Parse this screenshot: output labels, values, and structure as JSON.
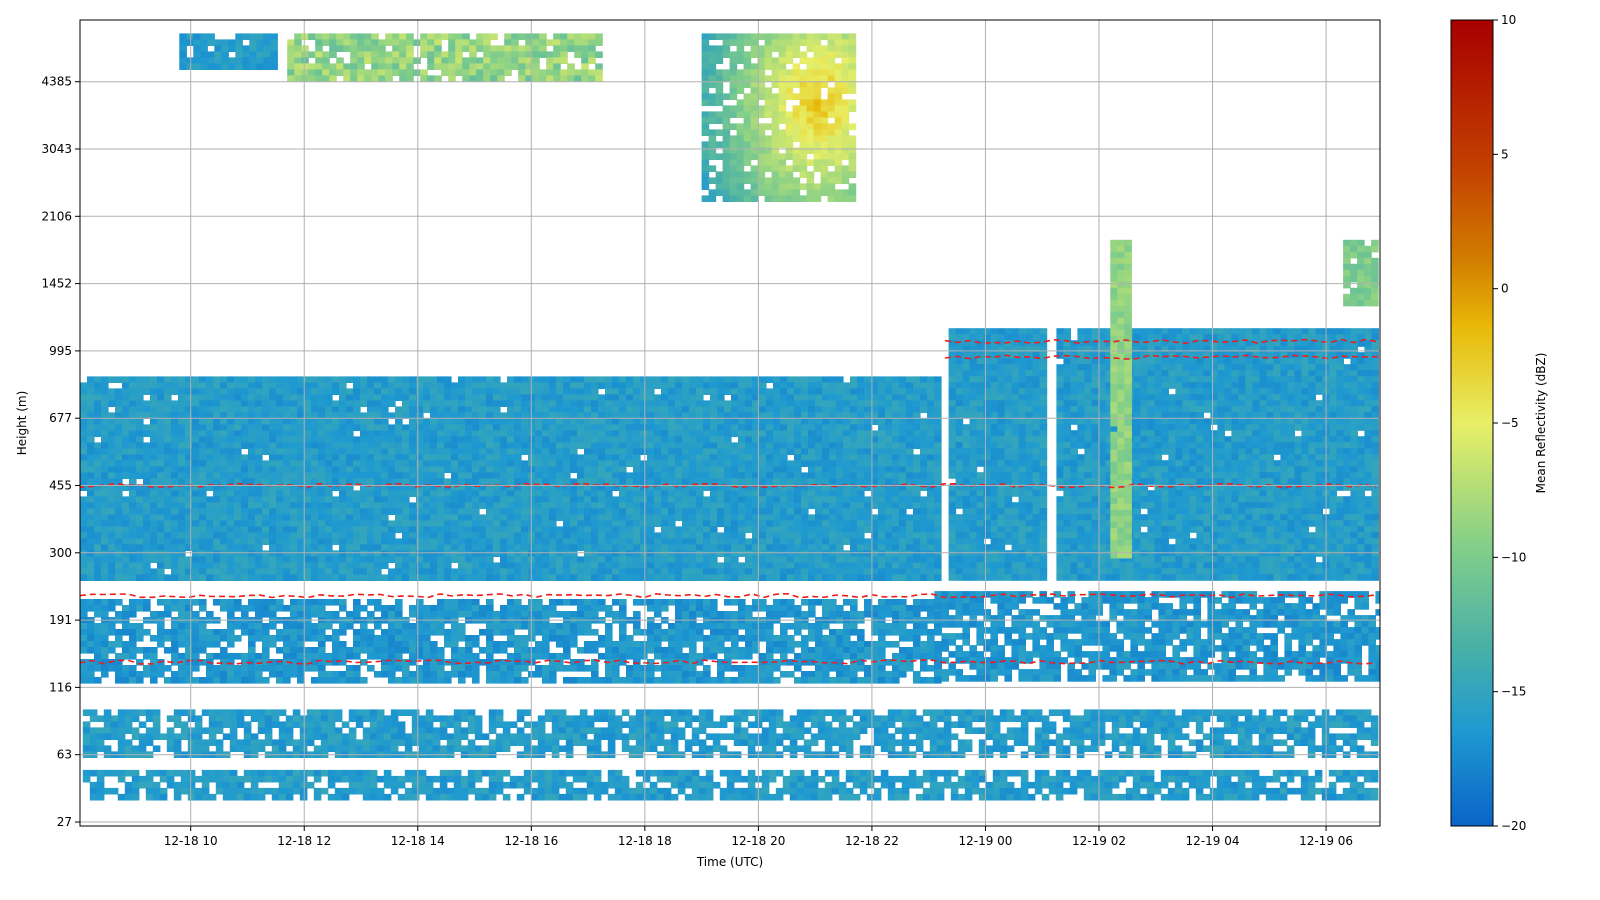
{
  "chart_data": {
    "type": "heatmap",
    "xlabel": "Time (UTC)",
    "ylabel": "Height (m)",
    "x_ticks": [
      "12-18 10",
      "12-18 12",
      "12-18 14",
      "12-18 16",
      "12-18 18",
      "12-18 20",
      "12-18 22",
      "12-19 00",
      "12-19 02",
      "12-19 04",
      "12-19 06"
    ],
    "x_tick_hours": [
      10,
      12,
      14,
      16,
      18,
      20,
      22,
      24,
      26,
      28,
      30
    ],
    "xlim_hours": [
      8.05,
      30.95
    ],
    "y_ticks": [
      "27",
      "63",
      "116",
      "191",
      "300",
      "455",
      "677",
      "995",
      "1452",
      "2106",
      "3043",
      "4385"
    ],
    "y_levels": 12,
    "ylim_top_m": 5800,
    "grid": true,
    "colorbar": {
      "label": "Mean Reflectivity (dBZ)",
      "ticks": [
        "10",
        "5",
        "0",
        "−5",
        "−10",
        "−15",
        "−20"
      ],
      "tick_values": [
        10,
        5,
        0,
        -5,
        -10,
        -15,
        -20
      ],
      "range": [
        -20,
        10
      ],
      "colormap": [
        "#0a64c8",
        "#1f9ad0",
        "#48b0a8",
        "#85cf88",
        "#e8ef66",
        "#e8b808",
        "#d27f00",
        "#c23f00",
        "#a80000"
      ]
    },
    "contour": {
      "color": "#ee1c1c",
      "style": "dashed"
    },
    "regions": [
      {
        "name": "low-cloud-layer",
        "t": [
          8.05,
          23.15
        ],
        "h": [
          255,
          860
        ],
        "dbz": -16
      },
      {
        "name": "low-cloud-layer-2",
        "t": [
          23.35,
          25.05
        ],
        "h": [
          255,
          1130
        ],
        "dbz": -16
      },
      {
        "name": "low-cloud-layer-3",
        "t": [
          25.25,
          30.9
        ],
        "h": [
          255,
          1130
        ],
        "dbz": -16
      },
      {
        "name": "band-170",
        "t": [
          8.05,
          23.15
        ],
        "h": [
          122,
          220
        ],
        "dbz": -16.5
      },
      {
        "name": "band-170-b",
        "t": [
          23.1,
          30.9
        ],
        "h": [
          122,
          232
        ],
        "dbz": -16.5
      },
      {
        "name": "band-75",
        "t": [
          8.1,
          30.9
        ],
        "h": [
          63,
          95
        ],
        "dbz": -16
      },
      {
        "name": "band-45",
        "t": [
          8.1,
          30.9
        ],
        "h": [
          37,
          52
        ],
        "dbz": -16
      },
      {
        "name": "upper-cloud-a",
        "t": [
          9.8,
          11.5
        ],
        "h": [
          4800,
          5700
        ],
        "dbz": -16
      },
      {
        "name": "upper-cloud-b",
        "t": [
          11.7,
          17.2
        ],
        "h": [
          4500,
          5700
        ],
        "dbz": -9
      },
      {
        "name": "upper-cloud-c",
        "t": [
          19.0,
          21.6
        ],
        "h": [
          2300,
          5700
        ],
        "dbz": -5
      },
      {
        "name": "fall-streak",
        "t": [
          26.2,
          26.55
        ],
        "h": [
          300,
          1850
        ],
        "dbz": -9
      },
      {
        "name": "upper-right-cloud",
        "t": [
          30.3,
          30.9
        ],
        "h": [
          1300,
          1850
        ],
        "dbz": -10
      }
    ],
    "contours_m": [
      225,
      140,
      455,
      1050,
      960
    ]
  }
}
